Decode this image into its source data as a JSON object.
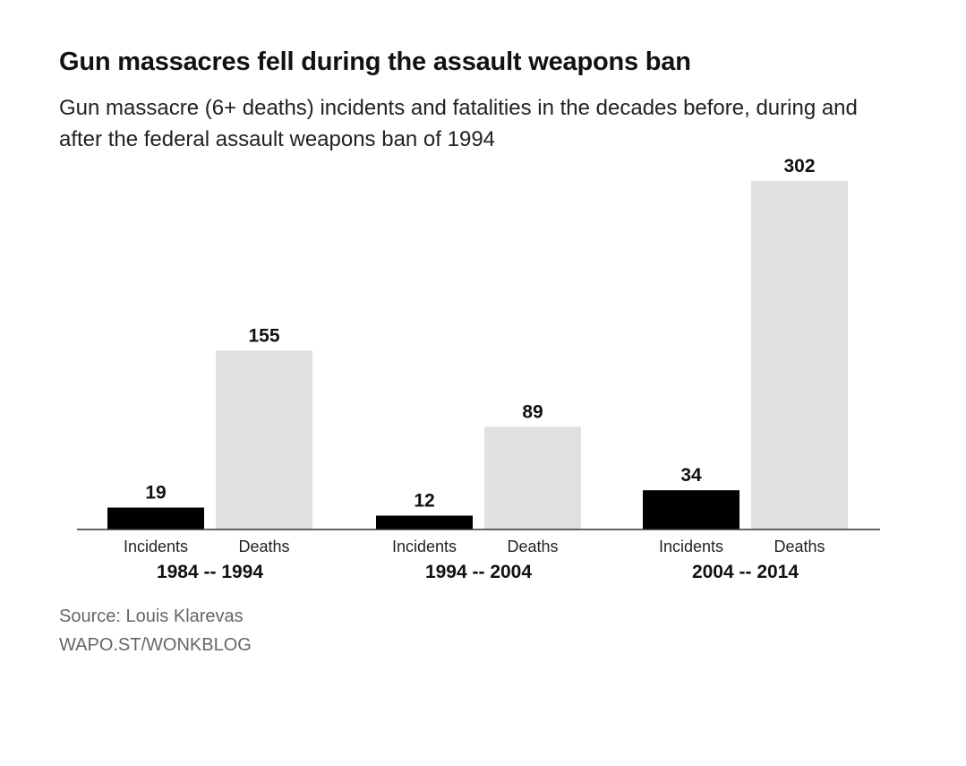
{
  "title": "Gun massacres fell during the assault weapons ban",
  "subtitle": "Gun massacre (6+ deaths) incidents and fatalities in the decades before, during and after the federal assault weapons ban of 1994",
  "source": "Source: Louis Klarevas",
  "credit": "WAPO.ST/WONKBLOG",
  "colors": {
    "incidents": "#000000",
    "deaths": "#e0e0e0",
    "axis": "#333333"
  },
  "chart_data": {
    "type": "bar",
    "title": "Gun massacres fell during the assault weapons ban",
    "categories": [
      "1984 -- 1994",
      "1994 -- 2004",
      "2004 -- 2014"
    ],
    "series": [
      {
        "name": "Incidents",
        "values": [
          19,
          12,
          34
        ]
      },
      {
        "name": "Deaths",
        "values": [
          155,
          89,
          302
        ]
      }
    ],
    "ylim": [
      0,
      302
    ],
    "grid": false,
    "legend": "none"
  }
}
